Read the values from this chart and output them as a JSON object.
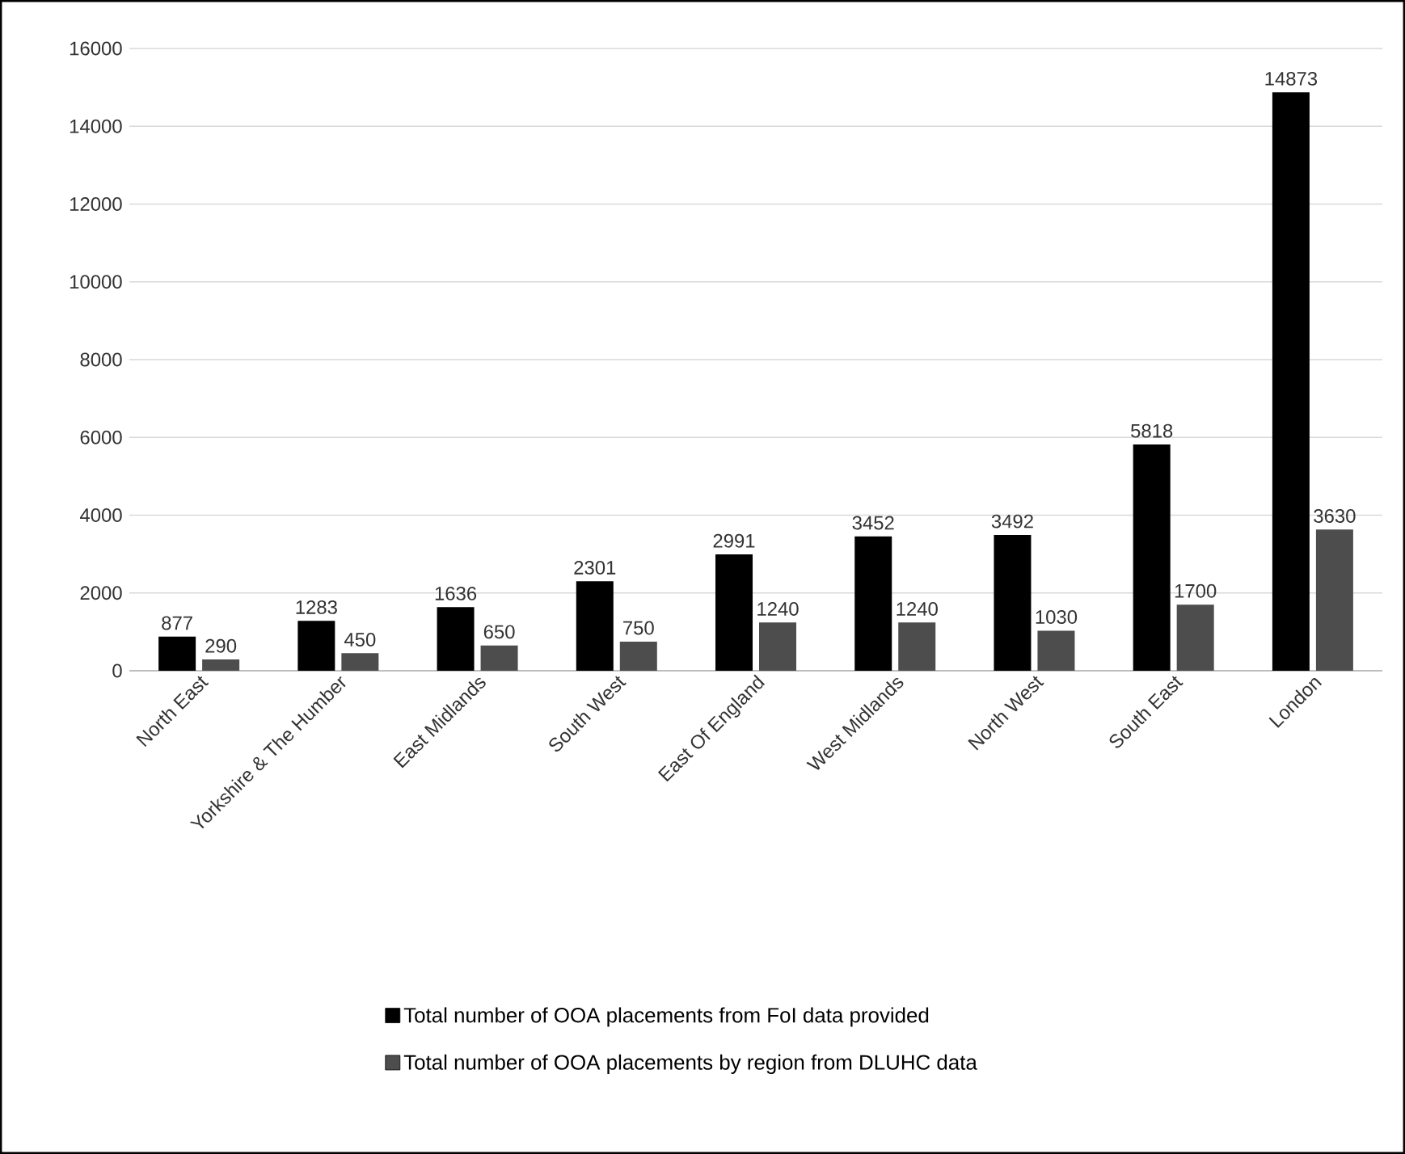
{
  "chart_data": {
    "type": "bar",
    "categories": [
      "North East",
      "Yorkshire & The Humber",
      "East Midlands",
      "South West",
      "East Of England",
      "West Midlands",
      "North West",
      "South East",
      "London"
    ],
    "series": [
      {
        "name": "Total number of OOA  placements from FoI data provided",
        "color": "#000000",
        "values": [
          877,
          1283,
          1636,
          2301,
          2991,
          3452,
          3492,
          5818,
          14873
        ]
      },
      {
        "name": "Total number of OOA placements by region from DLUHC data",
        "color": "#4d4d4d",
        "values": [
          290,
          450,
          650,
          750,
          1240,
          1240,
          1030,
          1700,
          3630
        ]
      }
    ],
    "ylim": [
      0,
      16000
    ],
    "yticks": [
      0,
      2000,
      4000,
      6000,
      8000,
      10000,
      12000,
      14000,
      16000
    ],
    "grid": "y",
    "legend": "bottom",
    "data_labels": true
  }
}
